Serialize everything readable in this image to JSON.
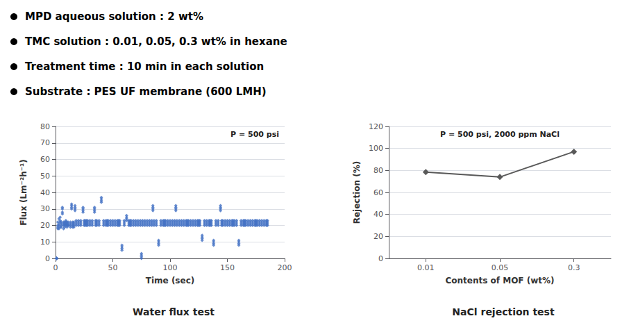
{
  "chart_data": [
    {
      "type": "scatter",
      "title": "Water flux test",
      "subtitle": [
        "MPD aqueous solution : 2 wt%",
        "TMC solution : 0.01, 0.05, 0.3 wt% in hexane",
        "Treatment time : 10 min in each solution",
        "Substrate : PES UF membrane (600 LMH)"
      ],
      "annotations": [
        "P = 500 psi"
      ],
      "xlabel": "Time (sec)",
      "ylabel": "Flux (Lm⁻²h⁻¹)",
      "xlim": [
        0,
        200
      ],
      "ylim": [
        0,
        80
      ],
      "xticks": [
        0,
        50,
        100,
        150,
        200
      ],
      "yticks": [
        0,
        10,
        20,
        30,
        40,
        50,
        60,
        70,
        80
      ],
      "grid": true,
      "color": "#4472C4",
      "marker": "diamond",
      "x": [
        1,
        1,
        1,
        1,
        1,
        1,
        1,
        1,
        2,
        2,
        2,
        2,
        3,
        3,
        3,
        3,
        4,
        4,
        4,
        4,
        5,
        5,
        5,
        5,
        6,
        6,
        6,
        6,
        7,
        7,
        7,
        7,
        8,
        8,
        8,
        8,
        9,
        9,
        9,
        9,
        10,
        10,
        10,
        10,
        11,
        11,
        11,
        11,
        13,
        13,
        13,
        13,
        14,
        14,
        14,
        14,
        15,
        15,
        15,
        15,
        16,
        16,
        16,
        16,
        17,
        17,
        17,
        17,
        18,
        18,
        18,
        18,
        20,
        20,
        20,
        20,
        22,
        22,
        22,
        22,
        24,
        24,
        24,
        24,
        25,
        25,
        25,
        25,
        26,
        26,
        26,
        26,
        27,
        27,
        27,
        27,
        28,
        28,
        28,
        28,
        30,
        30,
        30,
        30,
        32,
        32,
        32,
        32,
        34,
        34,
        34,
        34,
        35,
        35,
        35,
        35,
        36,
        36,
        36,
        36,
        38,
        38,
        38,
        38,
        40,
        40,
        40,
        40,
        42,
        42,
        42,
        42,
        44,
        44,
        44,
        44,
        45,
        45,
        45,
        45,
        46,
        46,
        46,
        46,
        48,
        48,
        48,
        48,
        50,
        50,
        50,
        50,
        52,
        52,
        52,
        52,
        54,
        54,
        54,
        54,
        55,
        55,
        55,
        55,
        56,
        56,
        56,
        56,
        58,
        58,
        58,
        58,
        60,
        60,
        60,
        60,
        62,
        62,
        62,
        62,
        64,
        64,
        64,
        64,
        65,
        65,
        65,
        65,
        66,
        66,
        66,
        66,
        68,
        68,
        68,
        68,
        70,
        70,
        70,
        70,
        72,
        72,
        72,
        72,
        74,
        74,
        74,
        74,
        75,
        75,
        75,
        75,
        76,
        76,
        76,
        76,
        78,
        78,
        78,
        78,
        80,
        80,
        80,
        80,
        82,
        82,
        82,
        82,
        84,
        84,
        84,
        84,
        85,
        85,
        85,
        85,
        86,
        86,
        86,
        86,
        88,
        88,
        88,
        88,
        90,
        90,
        90,
        90,
        92,
        92,
        92,
        92,
        94,
        94,
        94,
        94,
        95,
        95,
        95,
        95,
        96,
        96,
        96,
        96,
        98,
        98,
        98,
        98,
        100,
        100,
        100,
        100,
        102,
        102,
        102,
        102,
        104,
        104,
        104,
        104,
        105,
        105,
        105,
        105,
        106,
        106,
        106,
        106,
        108,
        108,
        108,
        108,
        110,
        110,
        110,
        110,
        112,
        112,
        112,
        112,
        114,
        114,
        114,
        114,
        115,
        115,
        115,
        115,
        116,
        116,
        116,
        116,
        118,
        118,
        118,
        118,
        120,
        120,
        120,
        120,
        122,
        122,
        122,
        122,
        124,
        124,
        124,
        124,
        125,
        125,
        125,
        125,
        126,
        126,
        126,
        126,
        128,
        128,
        128,
        128,
        130,
        130,
        130,
        130,
        132,
        132,
        132,
        132,
        134,
        134,
        134,
        134,
        135,
        135,
        135,
        135,
        136,
        136,
        136,
        136,
        138,
        138,
        138,
        138,
        140,
        140,
        140,
        140,
        142,
        142,
        142,
        142,
        144,
        144,
        144,
        144,
        145,
        145,
        145,
        145,
        146,
        146,
        146,
        146,
        148,
        148,
        148,
        148,
        150,
        150,
        150,
        150,
        152,
        152,
        152,
        152,
        154,
        154,
        154,
        154,
        155,
        155,
        155,
        155,
        156,
        156,
        156,
        156,
        158,
        158,
        158,
        158,
        160,
        160,
        160,
        160,
        162,
        162,
        162,
        162,
        164,
        164,
        164,
        164,
        165,
        165,
        165,
        165,
        166,
        166,
        166,
        166,
        168,
        168,
        168,
        168,
        170,
        170,
        170,
        170,
        172,
        172,
        172,
        172,
        174,
        174,
        174,
        174,
        175,
        175,
        175,
        175,
        176,
        176,
        176,
        176,
        178,
        178,
        178,
        178,
        180,
        180,
        180,
        180,
        182,
        182,
        182,
        182,
        184,
        184,
        184,
        184,
        185,
        185,
        185,
        185
      ],
      "values": [
        0,
        0,
        0,
        0,
        0,
        0,
        0,
        0,
        18,
        22,
        20,
        19,
        20,
        24,
        18,
        21,
        22,
        25,
        19,
        23,
        20,
        21,
        22,
        19,
        30,
        28,
        31,
        27,
        20,
        22,
        18,
        21,
        20,
        19,
        21,
        22,
        21,
        23,
        20,
        22,
        20,
        21,
        19,
        22,
        20,
        21,
        22,
        20,
        20,
        21,
        22,
        19,
        33,
        30,
        32,
        31,
        20,
        22,
        19,
        21,
        20,
        22,
        21,
        19,
        32,
        30,
        31,
        29,
        21,
        22,
        20,
        23,
        22,
        21,
        20,
        23,
        22,
        21,
        23,
        20,
        28,
        30,
        31,
        29,
        20,
        22,
        21,
        23,
        22,
        21,
        20,
        23,
        21,
        20,
        22,
        23,
        21,
        22,
        20,
        23,
        21,
        22,
        20,
        23,
        22,
        21,
        20,
        23,
        29,
        30,
        31,
        28,
        22,
        21,
        20,
        23,
        21,
        22,
        20,
        23,
        21,
        22,
        23,
        20,
        37,
        35,
        36,
        34,
        20,
        22,
        21,
        23,
        21,
        20,
        22,
        23,
        20,
        21,
        22,
        23,
        21,
        20,
        22,
        23,
        22,
        21,
        20,
        23,
        21,
        22,
        20,
        23,
        22,
        21,
        20,
        23,
        22,
        21,
        20,
        23,
        21,
        22,
        20,
        23,
        21,
        22,
        20,
        23,
        7,
        6,
        8,
        5,
        22,
        21,
        20,
        23,
        25,
        24,
        26,
        23,
        22,
        21,
        20,
        23,
        20,
        21,
        22,
        23,
        20,
        21,
        22,
        23,
        22,
        21,
        20,
        23,
        20,
        22,
        21,
        23,
        21,
        20,
        22,
        23,
        20,
        21,
        22,
        23,
        2,
        1,
        0,
        3,
        21,
        20,
        22,
        23,
        20,
        21,
        22,
        23,
        21,
        20,
        22,
        23,
        21,
        20,
        22,
        23,
        21,
        20,
        22,
        23,
        31,
        30,
        32,
        29,
        21,
        20,
        22,
        23,
        21,
        20,
        22,
        23,
        10,
        9,
        11,
        8,
        21,
        20,
        22,
        23,
        22,
        21,
        20,
        23,
        20,
        21,
        22,
        23,
        22,
        21,
        20,
        23,
        20,
        22,
        21,
        23,
        20,
        21,
        22,
        23,
        21,
        20,
        22,
        23,
        21,
        20,
        22,
        23,
        31,
        30,
        32,
        29,
        21,
        20,
        22,
        23,
        20,
        21,
        22,
        23,
        22,
        21,
        20,
        23,
        21,
        20,
        22,
        23,
        22,
        21,
        20,
        23,
        20,
        21,
        22,
        23,
        21,
        20,
        22,
        23,
        21,
        20,
        22,
        23,
        20,
        21,
        22,
        23,
        20,
        21,
        22,
        23,
        22,
        21,
        20,
        23,
        20,
        21,
        22,
        23,
        21,
        20,
        22,
        23,
        13,
        12,
        14,
        11,
        20,
        21,
        22,
        23,
        21,
        20,
        22,
        23,
        21,
        20,
        22,
        23,
        20,
        21,
        22,
        23,
        21,
        20,
        22,
        23,
        10,
        9,
        11,
        8,
        21,
        20,
        22,
        23,
        22,
        21,
        20,
        23,
        31,
        30,
        32,
        29,
        21,
        20,
        22,
        23,
        20,
        21,
        22,
        23,
        20,
        21,
        22,
        23,
        20,
        21,
        22,
        23,
        20,
        21,
        22,
        23,
        21,
        20,
        22,
        23,
        20,
        21,
        22,
        23,
        20,
        21,
        22,
        23,
        20,
        21,
        22,
        23,
        10,
        9,
        11,
        8,
        21,
        20,
        22,
        23,
        21,
        20,
        22,
        23,
        21,
        20,
        22,
        23,
        20,
        21,
        22,
        23,
        20,
        21,
        22,
        23,
        21,
        20,
        22,
        23,
        21,
        20,
        22,
        23,
        21,
        20,
        22,
        23,
        21,
        20,
        22,
        23,
        21,
        20,
        22,
        23,
        21,
        20,
        22,
        23,
        21,
        20,
        22,
        23,
        21,
        20,
        22,
        23,
        21,
        20,
        22,
        23,
        21,
        20,
        22,
        23
      ]
    },
    {
      "type": "line",
      "title": "NaCl rejection test",
      "annotations": [
        "P = 500 psi, 2000 ppm NaCl"
      ],
      "xlabel": "Contents of MOF (wt%)",
      "ylabel": "Rejection (%)",
      "categories": [
        "0.01",
        "0.05",
        "0.3"
      ],
      "values": [
        78.5,
        74.0,
        97.0
      ],
      "ylim": [
        0,
        120
      ],
      "yticks": [
        0,
        20,
        40,
        60,
        80,
        100,
        120
      ],
      "grid": true,
      "color": "#595959",
      "marker": "diamond"
    }
  ]
}
